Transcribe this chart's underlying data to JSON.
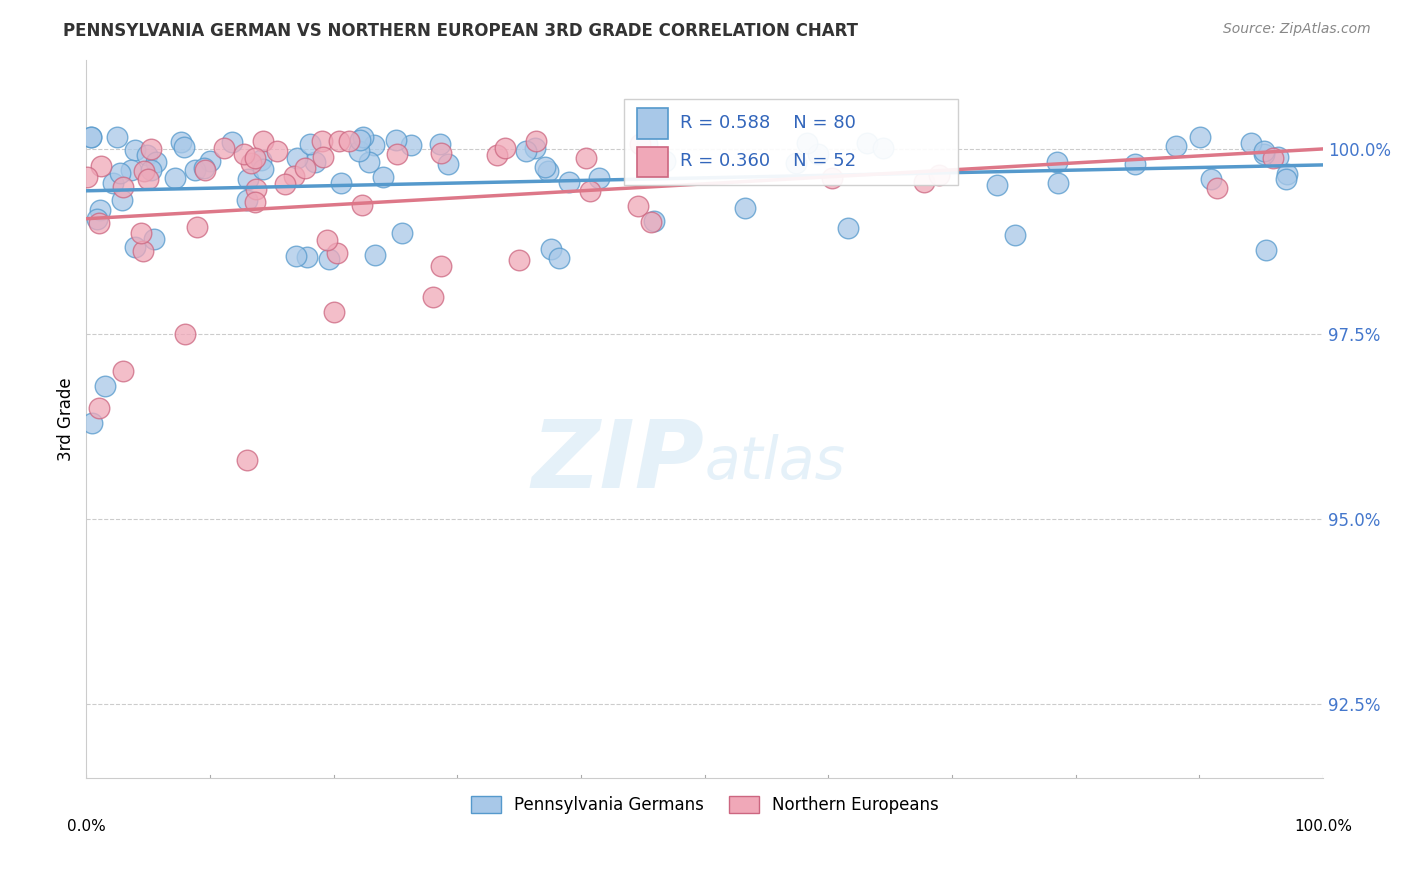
{
  "title": "PENNSYLVANIA GERMAN VS NORTHERN EUROPEAN 3RD GRADE CORRELATION CHART",
  "source": "Source: ZipAtlas.com",
  "ylabel": "3rd Grade",
  "y_ticks": [
    92.5,
    95.0,
    97.5,
    100.0
  ],
  "y_tick_labels": [
    "92.5%",
    "95.0%",
    "97.5%",
    "100.0%"
  ],
  "xmin": 0.0,
  "xmax": 100.0,
  "ymin": 91.5,
  "ymax": 101.2,
  "blue_color": "#A8C8E8",
  "blue_edge_color": "#5599CC",
  "pink_color": "#F0A8B8",
  "pink_edge_color": "#CC6680",
  "blue_line_color": "#5599CC",
  "pink_line_color": "#DD7788",
  "legend_blue_label": "Pennsylvania Germans",
  "legend_pink_label": "Northern Europeans",
  "R_blue": 0.588,
  "N_blue": 80,
  "R_pink": 0.36,
  "N_pink": 52,
  "watermark_zip": "ZIP",
  "watermark_atlas": "atlas",
  "grid_color": "#CCCCCC"
}
